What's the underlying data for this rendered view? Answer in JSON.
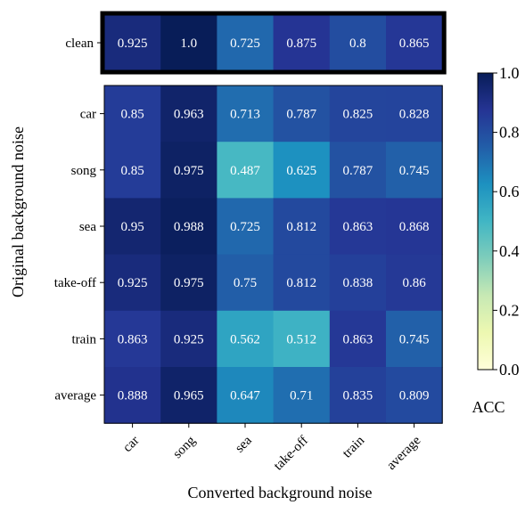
{
  "chart_data": {
    "type": "heatmap",
    "xlabel": "Converted background noise",
    "ylabel": "Original background noise",
    "columns": [
      "car",
      "song",
      "sea",
      "take-off",
      "train",
      "average"
    ],
    "clean_panel": {
      "row_label": "clean",
      "values": [
        0.925,
        1.0,
        0.725,
        0.875,
        0.8,
        0.865
      ],
      "value_labels": [
        "0.925",
        "1.0",
        "0.725",
        "0.875",
        "0.8",
        "0.865"
      ]
    },
    "main_panel": {
      "rows": [
        "car",
        "song",
        "sea",
        "take-off",
        "train",
        "average"
      ],
      "values": [
        [
          0.85,
          0.963,
          0.713,
          0.787,
          0.825,
          0.828
        ],
        [
          0.85,
          0.975,
          0.487,
          0.625,
          0.787,
          0.745
        ],
        [
          0.95,
          0.988,
          0.725,
          0.812,
          0.863,
          0.868
        ],
        [
          0.925,
          0.975,
          0.75,
          0.812,
          0.838,
          0.86
        ],
        [
          0.863,
          0.925,
          0.562,
          0.512,
          0.863,
          0.745
        ],
        [
          0.888,
          0.965,
          0.647,
          0.71,
          0.835,
          0.809
        ]
      ],
      "value_labels": [
        [
          "0.85",
          "0.963",
          "0.713",
          "0.787",
          "0.825",
          "0.828"
        ],
        [
          "0.85",
          "0.975",
          "0.487",
          "0.625",
          "0.787",
          "0.745"
        ],
        [
          "0.95",
          "0.988",
          "0.725",
          "0.812",
          "0.863",
          "0.868"
        ],
        [
          "0.925",
          "0.975",
          "0.75",
          "0.812",
          "0.838",
          "0.86"
        ],
        [
          "0.863",
          "0.925",
          "0.562",
          "0.512",
          "0.863",
          "0.745"
        ],
        [
          "0.888",
          "0.965",
          "0.647",
          "0.71",
          "0.835",
          "0.809"
        ]
      ]
    },
    "colorbar": {
      "label": "ACC",
      "range": [
        0.0,
        1.0
      ],
      "ticks": [
        0.0,
        0.2,
        0.4,
        0.6,
        0.8,
        1.0
      ],
      "tick_labels": [
        "0.0",
        "0.2",
        "0.4",
        "0.6",
        "0.8",
        "1.0"
      ],
      "colormap": "YlGnBu",
      "colormap_stops": [
        "#ffffd9",
        "#edf8b1",
        "#c7e9b4",
        "#7fcdbb",
        "#41b6c4",
        "#1d91c0",
        "#225ea8",
        "#253494",
        "#081d58"
      ]
    },
    "cell_text_color": "#ffffff",
    "clean_panel_border_color": "#000000"
  }
}
